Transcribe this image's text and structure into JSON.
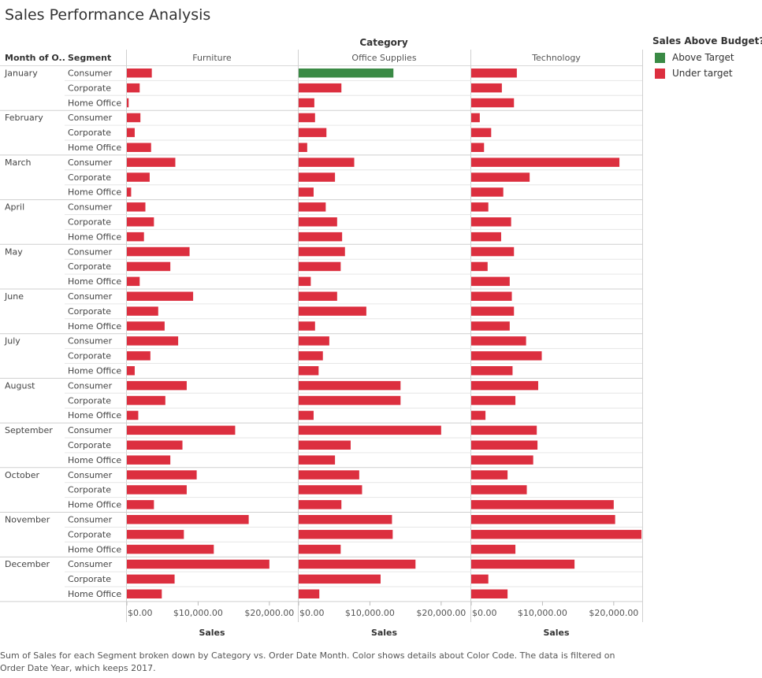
{
  "title": "Sales Performance Analysis",
  "header": {
    "category_label": "Category",
    "month_label": "Month of O..",
    "segment_label": "Segment"
  },
  "legend": {
    "title": "Sales Above Budget?",
    "items": [
      {
        "label": "Above Target",
        "color": "#3a8a45"
      },
      {
        "label": "Under target",
        "color": "#dc2f3f"
      }
    ]
  },
  "caption": "Sum of Sales for each Segment broken down by Category vs. Order Date Month.  Color shows details about Color Code. The data is filtered on Order Date Year, which keeps 2017.",
  "chart_data": {
    "type": "bar",
    "orientation": "horizontal",
    "months": [
      "January",
      "February",
      "March",
      "April",
      "May",
      "June",
      "July",
      "August",
      "September",
      "October",
      "November",
      "December"
    ],
    "segments": [
      "Consumer",
      "Corporate",
      "Home Office"
    ],
    "categories": [
      "Furniture",
      "Office Supplies",
      "Technology"
    ],
    "x_axis": {
      "label": "Sales",
      "range": [
        0,
        24000
      ],
      "ticks": [
        0,
        10000,
        20000
      ],
      "tick_labels": [
        "$0.00",
        "$10,000.00",
        "$20,000.00"
      ]
    },
    "color_legend": "Sales Above Budget?",
    "series": [
      {
        "name": "Furniture",
        "values": [
          [
            3500,
            1800,
            250
          ],
          [
            1900,
            1100,
            3400
          ],
          [
            6800,
            3200,
            600
          ],
          [
            2600,
            3800,
            2400
          ],
          [
            8800,
            6100,
            1800
          ],
          [
            9300,
            4400,
            5300
          ],
          [
            7200,
            3300,
            1100
          ],
          [
            8400,
            5400,
            1600
          ],
          [
            15200,
            7800,
            6100
          ],
          [
            9800,
            8400,
            3800
          ],
          [
            17100,
            8000,
            12200
          ],
          [
            20000,
            6700,
            4900
          ]
        ],
        "status": [
          [
            "Under target",
            "Under target",
            "Under target"
          ],
          [
            "Under target",
            "Under target",
            "Under target"
          ],
          [
            "Under target",
            "Under target",
            "Under target"
          ],
          [
            "Under target",
            "Under target",
            "Under target"
          ],
          [
            "Under target",
            "Under target",
            "Under target"
          ],
          [
            "Under target",
            "Under target",
            "Under target"
          ],
          [
            "Under target",
            "Under target",
            "Under target"
          ],
          [
            "Under target",
            "Under target",
            "Under target"
          ],
          [
            "Under target",
            "Under target",
            "Under target"
          ],
          [
            "Under target",
            "Under target",
            "Under target"
          ],
          [
            "Under target",
            "Under target",
            "Under target"
          ],
          [
            "Under target",
            "Under target",
            "Under target"
          ]
        ]
      },
      {
        "name": "Office Supplies",
        "values": [
          [
            13300,
            6000,
            2200
          ],
          [
            2300,
            3900,
            1200
          ],
          [
            7800,
            5100,
            2100
          ],
          [
            3800,
            5400,
            6100
          ],
          [
            6500,
            5900,
            1700
          ],
          [
            5400,
            9500,
            2300
          ],
          [
            4300,
            3400,
            2800
          ],
          [
            14300,
            14300,
            2100
          ],
          [
            20000,
            7300,
            5100
          ],
          [
            8500,
            8900,
            6000
          ],
          [
            13100,
            13200,
            5900
          ],
          [
            16400,
            11500,
            2900
          ]
        ],
        "status": [
          [
            "Above Target",
            "Under target",
            "Under target"
          ],
          [
            "Under target",
            "Under target",
            "Under target"
          ],
          [
            "Under target",
            "Under target",
            "Under target"
          ],
          [
            "Under target",
            "Under target",
            "Under target"
          ],
          [
            "Under target",
            "Under target",
            "Under target"
          ],
          [
            "Under target",
            "Under target",
            "Under target"
          ],
          [
            "Under target",
            "Under target",
            "Under target"
          ],
          [
            "Under target",
            "Under target",
            "Under target"
          ],
          [
            "Under target",
            "Under target",
            "Under target"
          ],
          [
            "Under target",
            "Under target",
            "Under target"
          ],
          [
            "Under target",
            "Under target",
            "Under target"
          ],
          [
            "Under target",
            "Under target",
            "Under target"
          ]
        ]
      },
      {
        "name": "Technology",
        "values": [
          [
            6400,
            4300,
            6000
          ],
          [
            1200,
            2800,
            1800
          ],
          [
            20800,
            8200,
            4500
          ],
          [
            2400,
            5600,
            4200
          ],
          [
            6000,
            2300,
            5400
          ],
          [
            5700,
            6000,
            5400
          ],
          [
            7700,
            9900,
            5800
          ],
          [
            9400,
            6200,
            2000
          ],
          [
            9200,
            9300,
            8700
          ],
          [
            5100,
            7800,
            20000
          ],
          [
            20200,
            23900,
            6200
          ],
          [
            14500,
            2400,
            5100
          ]
        ],
        "status": [
          [
            "Under target",
            "Under target",
            "Under target"
          ],
          [
            "Under target",
            "Under target",
            "Under target"
          ],
          [
            "Under target",
            "Under target",
            "Under target"
          ],
          [
            "Under target",
            "Under target",
            "Under target"
          ],
          [
            "Under target",
            "Under target",
            "Under target"
          ],
          [
            "Under target",
            "Under target",
            "Under target"
          ],
          [
            "Under target",
            "Under target",
            "Under target"
          ],
          [
            "Under target",
            "Under target",
            "Under target"
          ],
          [
            "Under target",
            "Under target",
            "Under target"
          ],
          [
            "Under target",
            "Under target",
            "Under target"
          ],
          [
            "Under target",
            "Under target",
            "Under target"
          ],
          [
            "Under target",
            "Under target",
            "Under target"
          ]
        ]
      }
    ]
  }
}
